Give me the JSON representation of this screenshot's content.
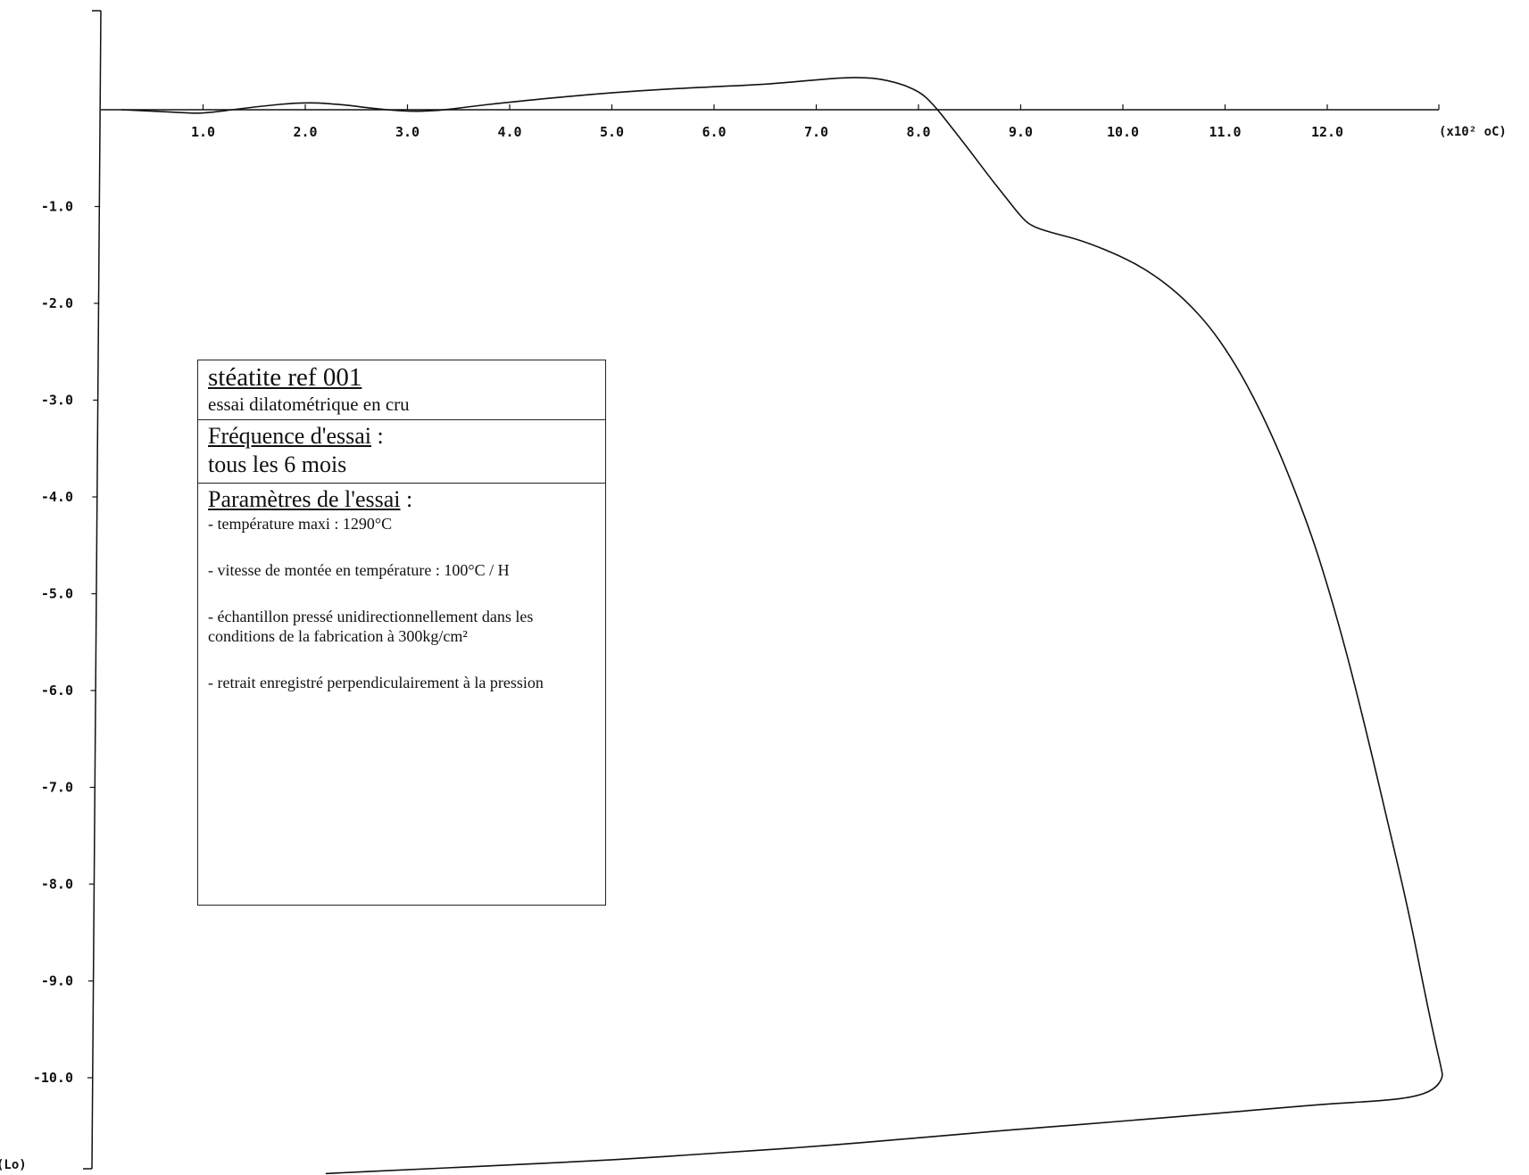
{
  "chart_data": {
    "type": "line",
    "title": "",
    "xlabel": "(x10² oC)",
    "ylabel": "(Lo)",
    "xlim": [
      0,
      13.2
    ],
    "ylim": [
      -10.95,
      1.0
    ],
    "x_ticks": [
      "1.0",
      "2.0",
      "3.0",
      "4.0",
      "5.0",
      "6.0",
      "7.0",
      "8.0",
      "9.0",
      "10.0",
      "11.0",
      "12.0"
    ],
    "y_ticks": [
      "-1.0",
      "-2.0",
      "-3.0",
      "-4.0",
      "-5.0",
      "-6.0",
      "-7.0",
      "-8.0",
      "-9.0",
      "-10.0"
    ],
    "series": [
      {
        "values_xy": [
          [
            0.2,
            0.0
          ],
          [
            0.8,
            -0.03
          ],
          [
            1.0,
            -0.04
          ],
          [
            1.5,
            0.03
          ],
          [
            2.0,
            0.08
          ],
          [
            2.4,
            0.05
          ],
          [
            2.6,
            0.02
          ],
          [
            3.0,
            -0.02
          ],
          [
            3.3,
            -0.01
          ],
          [
            3.6,
            0.03
          ],
          [
            4.0,
            0.08
          ],
          [
            5.0,
            0.18
          ],
          [
            6.0,
            0.24
          ],
          [
            6.5,
            0.26
          ],
          [
            7.0,
            0.31
          ],
          [
            7.4,
            0.34
          ],
          [
            7.7,
            0.31
          ],
          [
            8.0,
            0.2
          ],
          [
            8.15,
            0.05
          ],
          [
            8.3,
            -0.15
          ],
          [
            8.5,
            -0.42
          ],
          [
            8.7,
            -0.7
          ],
          [
            8.85,
            -0.9
          ],
          [
            9.0,
            -1.1
          ],
          [
            9.1,
            -1.2
          ],
          [
            9.3,
            -1.27
          ],
          [
            9.6,
            -1.35
          ],
          [
            10.0,
            -1.52
          ],
          [
            10.3,
            -1.7
          ],
          [
            10.6,
            -1.95
          ],
          [
            10.9,
            -2.3
          ],
          [
            11.2,
            -2.8
          ],
          [
            11.5,
            -3.45
          ],
          [
            11.8,
            -4.25
          ],
          [
            12.0,
            -4.9
          ],
          [
            12.2,
            -5.65
          ],
          [
            12.4,
            -6.5
          ],
          [
            12.6,
            -7.4
          ],
          [
            12.8,
            -8.3
          ],
          [
            12.95,
            -9.1
          ],
          [
            13.05,
            -9.6
          ],
          [
            13.12,
            -9.92
          ],
          [
            13.13,
            -10.0
          ],
          [
            13.05,
            -10.12
          ],
          [
            12.85,
            -10.2
          ],
          [
            12.5,
            -10.24
          ],
          [
            12.0,
            -10.27
          ],
          [
            11.0,
            -10.36
          ],
          [
            10.0,
            -10.45
          ],
          [
            9.0,
            -10.53
          ],
          [
            8.0,
            -10.62
          ],
          [
            7.0,
            -10.71
          ],
          [
            6.0,
            -10.78
          ],
          [
            5.0,
            -10.85
          ],
          [
            4.0,
            -10.9
          ],
          [
            3.0,
            -10.95
          ],
          [
            2.2,
            -10.99
          ]
        ]
      }
    ],
    "grid": false,
    "legend": "none"
  },
  "info_box": {
    "title": "stéatite ref 001",
    "subtitle": "essai dilatométrique en cru",
    "frequency_heading": "Fréquence d'essai",
    "frequency_colon": " :",
    "frequency_value": "tous les 6 mois",
    "params_heading": "Paramètres de l'essai",
    "params_colon": " :",
    "params": [
      "- température maxi : 1290°C",
      "- vitesse de montée en température : 100°C / H",
      "- échantillon pressé unidirectionnellement dans les conditions de la fabrication à 300kg/cm²",
      "- retrait enregistré perpendiculairement à la pression"
    ]
  }
}
